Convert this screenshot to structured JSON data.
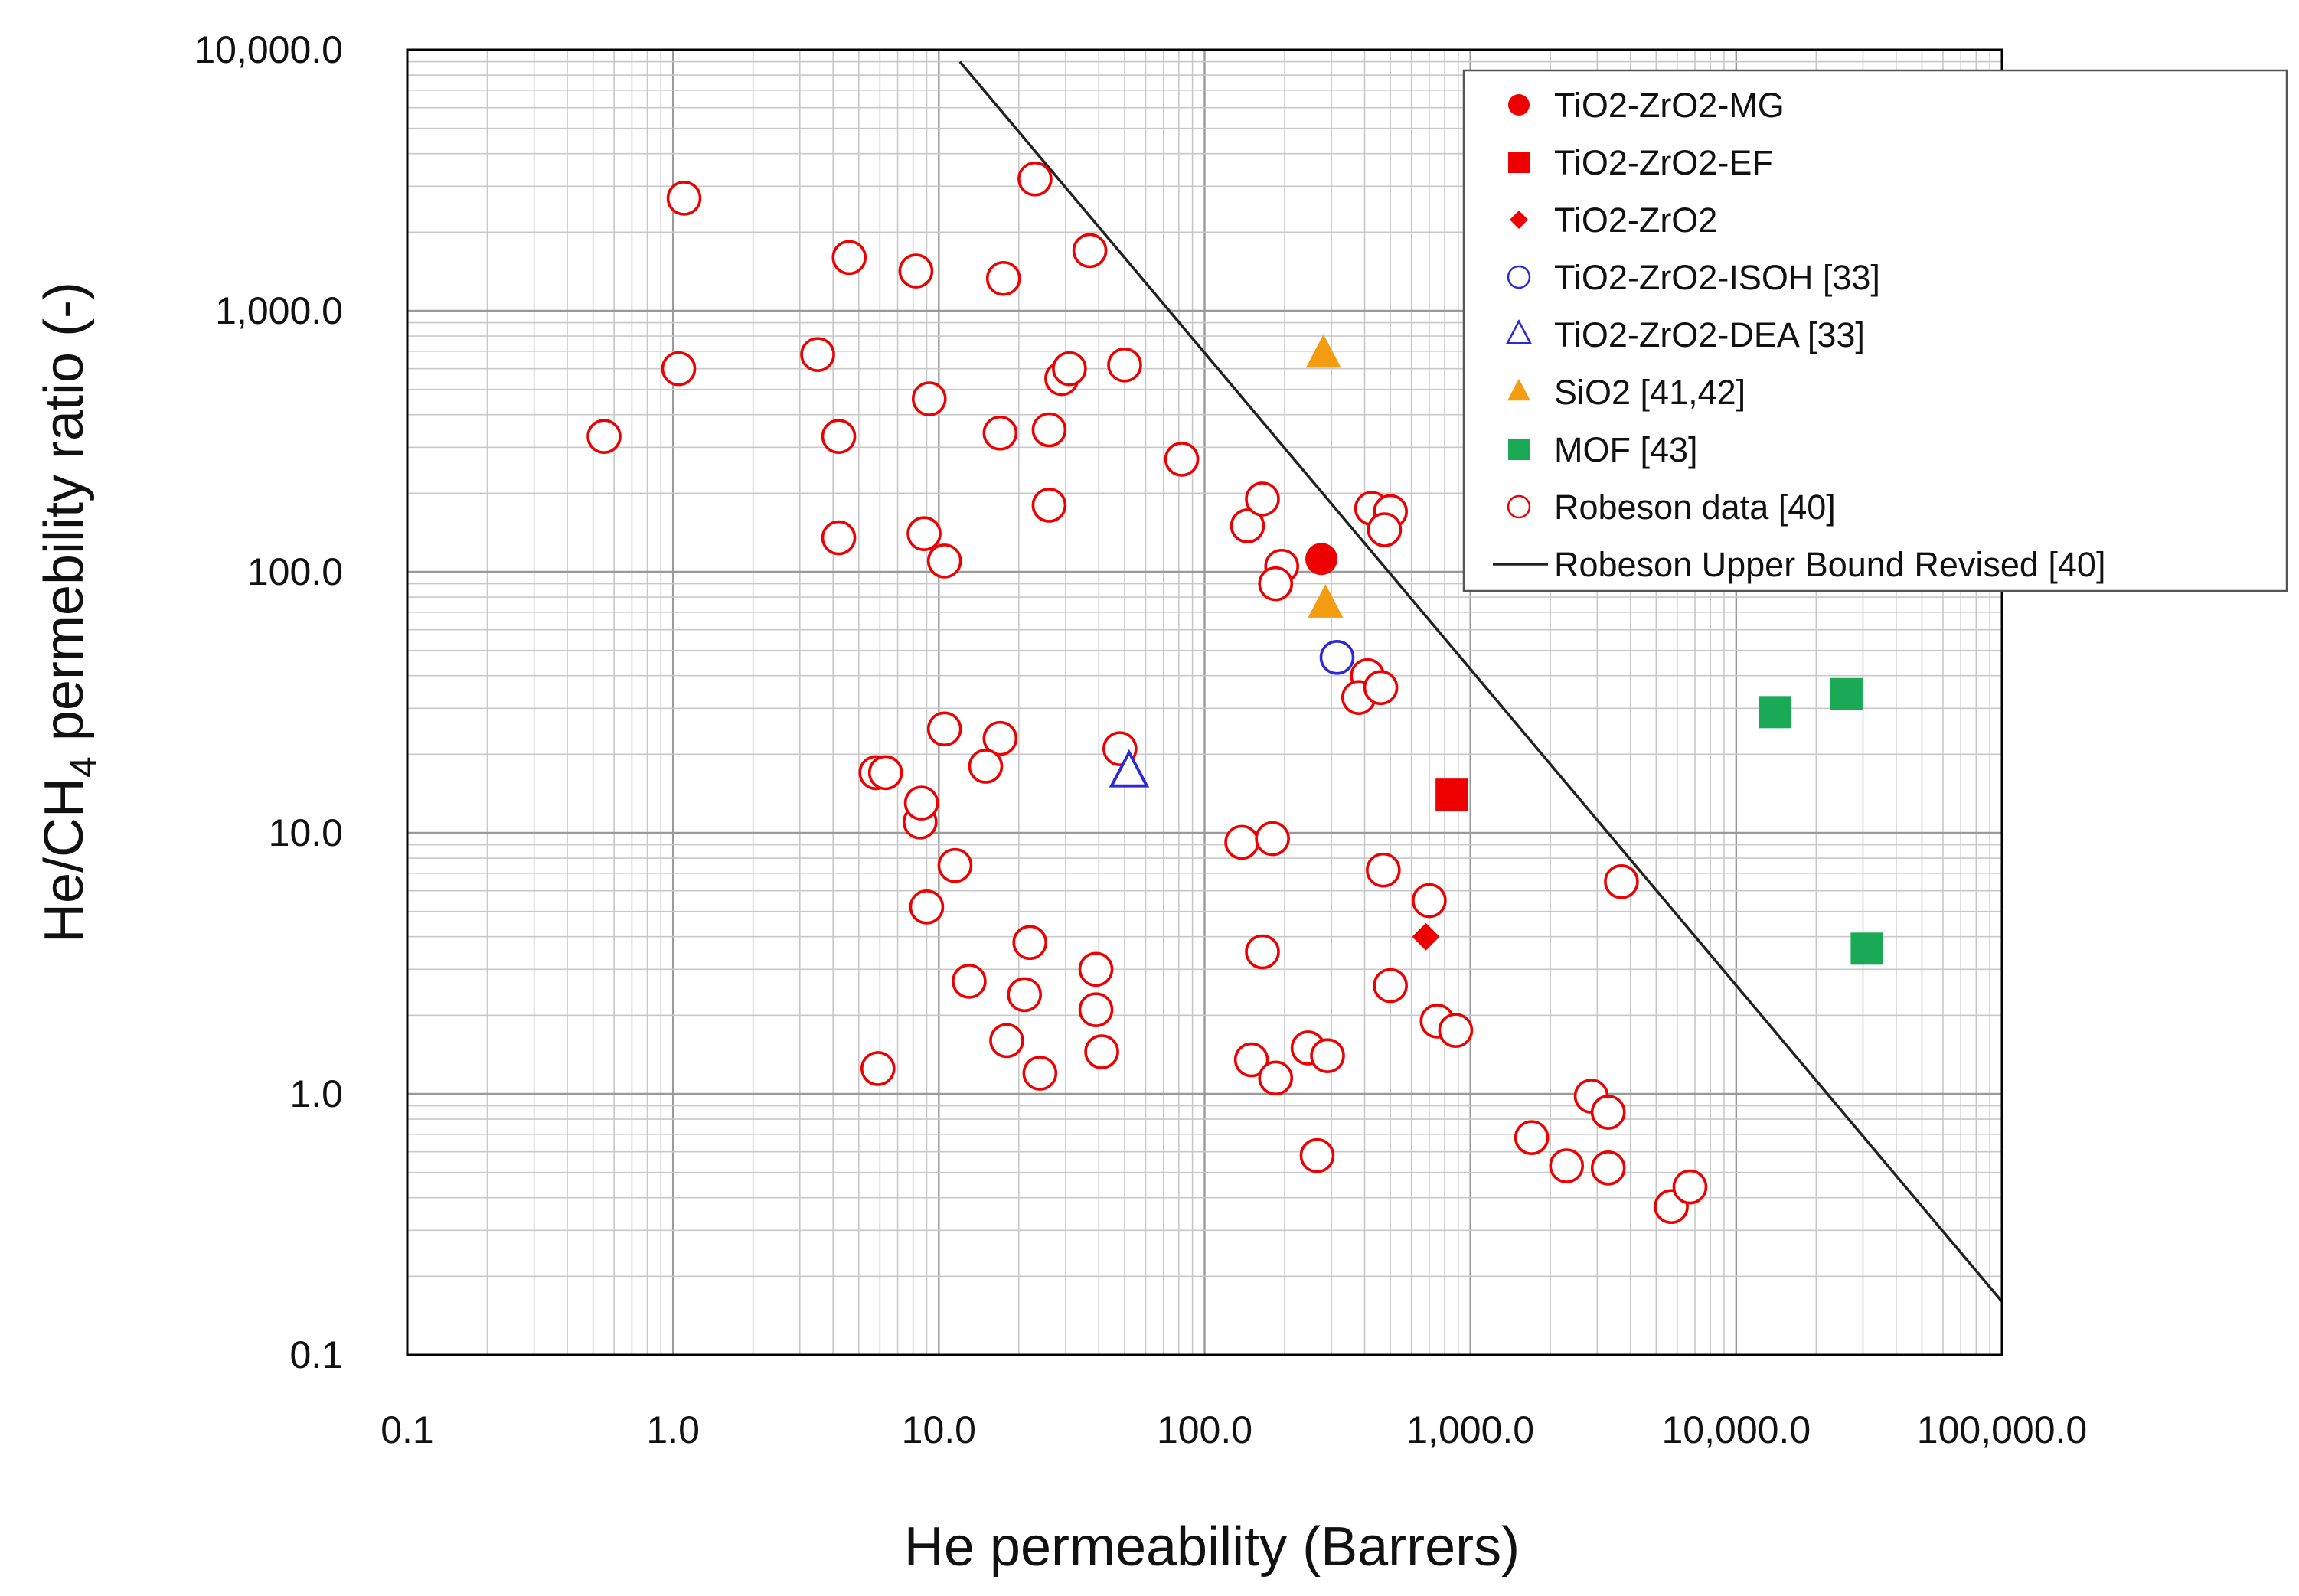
{
  "chart_data": {
    "type": "scatter",
    "xscale": "log",
    "yscale": "log",
    "xlim": [
      0.1,
      100000.0
    ],
    "ylim": [
      0.1,
      10000.0
    ],
    "x_ticks": [
      {
        "value": 0.1,
        "label": "0.1"
      },
      {
        "value": 1,
        "label": "1.0"
      },
      {
        "value": 10,
        "label": "10.0"
      },
      {
        "value": 100,
        "label": "100.0"
      },
      {
        "value": 1000,
        "label": "1,000.0"
      },
      {
        "value": 10000,
        "label": "10,000.0"
      },
      {
        "value": 100000,
        "label": "100,000.0"
      }
    ],
    "y_ticks": [
      {
        "value": 0.1,
        "label": "0.1"
      },
      {
        "value": 1,
        "label": "1.0"
      },
      {
        "value": 10,
        "label": "10.0"
      },
      {
        "value": 100,
        "label": "100.0"
      },
      {
        "value": 1000,
        "label": "1,000.0"
      },
      {
        "value": 10000,
        "label": "10,000.0"
      }
    ],
    "grid": true,
    "xlabel": "He permeability (Barrers)",
    "ylabel": {
      "prefix": "He/CH",
      "subscript": "4",
      "suffix": " permebility ratio (-)"
    },
    "legend_position": "top-right",
    "series": [
      {
        "name": "TiO2-ZrO2-MG",
        "marker": "circle",
        "filled": true,
        "color": "#ee0000",
        "points": [
          [
            275,
            112
          ]
        ]
      },
      {
        "name": "TiO2-ZrO2-EF",
        "marker": "square",
        "filled": true,
        "color": "#ee0000",
        "points": [
          [
            850,
            14
          ]
        ]
      },
      {
        "name": "TiO2-ZrO2",
        "marker": "diamond",
        "filled": true,
        "color": "#ee0000",
        "points": [
          [
            680,
            4
          ]
        ]
      },
      {
        "name": "TiO2-ZrO2-ISOH [33]",
        "marker": "circle",
        "filled": false,
        "color": "#2b2bd6",
        "points": [
          [
            315,
            47
          ]
        ]
      },
      {
        "name": "TiO2-ZrO2-DEA [33]",
        "marker": "triangle",
        "filled": false,
        "color": "#2b2bd6",
        "points": [
          [
            52,
            17
          ]
        ]
      },
      {
        "name": "SiO2 [41,42]",
        "marker": "triangle",
        "filled": true,
        "color": "#f39c12",
        "points": [
          [
            280,
            680
          ],
          [
            285,
            75
          ]
        ]
      },
      {
        "name": "MOF [43]",
        "marker": "square",
        "filled": true,
        "color": "#1aaa55",
        "points": [
          [
            14000,
            29
          ],
          [
            26000,
            34
          ],
          [
            31000,
            3.6
          ]
        ]
      },
      {
        "name": "Robeson data [40]",
        "marker": "circle",
        "filled": false,
        "color": "#ee0000",
        "points": [
          [
            0.55,
            330
          ],
          [
            1.05,
            600
          ],
          [
            1.1,
            2700
          ],
          [
            3.5,
            680
          ],
          [
            4.2,
            330
          ],
          [
            4.2,
            135
          ],
          [
            4.6,
            1600
          ],
          [
            8.2,
            1420
          ],
          [
            9.2,
            460
          ],
          [
            8.8,
            140
          ],
          [
            10.5,
            110
          ],
          [
            17,
            340
          ],
          [
            17.5,
            1330
          ],
          [
            23,
            3200
          ],
          [
            29,
            550
          ],
          [
            31,
            600
          ],
          [
            26,
            350
          ],
          [
            26,
            180
          ],
          [
            37,
            1700
          ],
          [
            50,
            620
          ],
          [
            82,
            270
          ],
          [
            10.5,
            25
          ],
          [
            17,
            23
          ],
          [
            15,
            18
          ],
          [
            5.8,
            17
          ],
          [
            6.3,
            17
          ],
          [
            8.5,
            11
          ],
          [
            8.6,
            13
          ],
          [
            11.5,
            7.5
          ],
          [
            9,
            5.2
          ],
          [
            13,
            2.7
          ],
          [
            22,
            3.8
          ],
          [
            21,
            2.4
          ],
          [
            18,
            1.6
          ],
          [
            24,
            1.2
          ],
          [
            39,
            3
          ],
          [
            39,
            2.1
          ],
          [
            41,
            1.45
          ],
          [
            48,
            21
          ],
          [
            5.9,
            1.25
          ],
          [
            145,
            150
          ],
          [
            165,
            190
          ],
          [
            195,
            105
          ],
          [
            185,
            90
          ],
          [
            138,
            9.2
          ],
          [
            180,
            9.5
          ],
          [
            165,
            3.5
          ],
          [
            150,
            1.35
          ],
          [
            185,
            1.15
          ],
          [
            245,
            1.5
          ],
          [
            290,
            1.4
          ],
          [
            265,
            0.58
          ],
          [
            425,
            175
          ],
          [
            500,
            170
          ],
          [
            475,
            145
          ],
          [
            410,
            40
          ],
          [
            380,
            33
          ],
          [
            460,
            36
          ],
          [
            470,
            7.2
          ],
          [
            700,
            5.5
          ],
          [
            500,
            2.6
          ],
          [
            750,
            1.9
          ],
          [
            880,
            1.75
          ],
          [
            1700,
            0.68
          ],
          [
            2300,
            0.53
          ],
          [
            2850,
            0.98
          ],
          [
            3300,
            0.85
          ],
          [
            3300,
            0.52
          ],
          [
            3700,
            6.5
          ],
          [
            5700,
            0.37
          ],
          [
            6700,
            0.44
          ]
        ]
      }
    ],
    "line": {
      "name": "Robeson Upper Bound Revised [40]",
      "color": "#222222",
      "points": [
        [
          12,
          9000
        ],
        [
          100000,
          0.16
        ]
      ]
    }
  }
}
